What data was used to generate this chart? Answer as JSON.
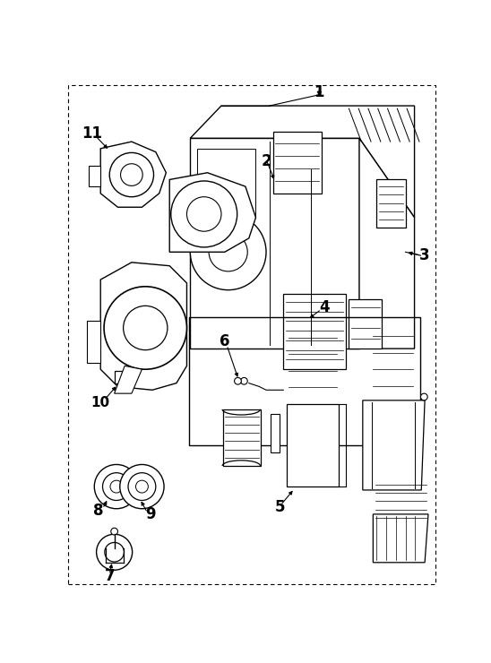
{
  "bg_color": "#ffffff",
  "line_color": "#000000",
  "fig_width": 5.48,
  "fig_height": 7.4,
  "dpi": 100
}
